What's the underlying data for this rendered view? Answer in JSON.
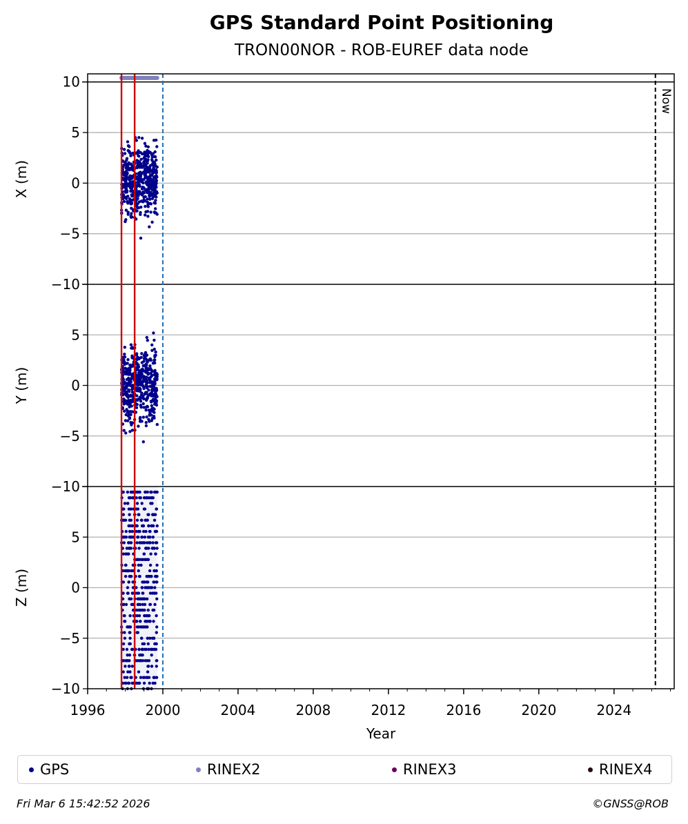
{
  "header": {
    "title": "GPS Standard Point Positioning",
    "subtitle": "TRON00NOR - ROB-EUREF data node"
  },
  "chart_data": {
    "type": "scatter",
    "xlabel": "Year",
    "xlim": [
      1996,
      2027.2
    ],
    "x_ticks": [
      "1996",
      "2000",
      "2004",
      "2008",
      "2012",
      "2016",
      "2020",
      "2024"
    ],
    "panels": [
      {
        "name": "x",
        "ylabel": "X (m)",
        "ylim": [
          -10,
          10.8
        ],
        "y_ticks": [
          "10",
          "5",
          "0",
          "−5",
          "−10"
        ]
      },
      {
        "name": "y",
        "ylabel": "Y (m)",
        "ylim": [
          -10,
          10
        ],
        "y_ticks": [
          "5",
          "0",
          "−5",
          "−10"
        ]
      },
      {
        "name": "z",
        "ylabel": "Z (m)",
        "ylim": [
          -10,
          10
        ],
        "y_ticks": [
          "5",
          "0",
          "−5",
          "−10"
        ]
      }
    ],
    "gps_data_span": [
      1997.8,
      1999.7
    ],
    "rinex2_span": [
      1997.8,
      1999.7
    ],
    "rinex2_level": 10.4,
    "event_lines_red": [
      1997.8,
      1998.5
    ],
    "blue_dashed_line": 2000.0,
    "now_line": 2026.2,
    "now_label": "Now",
    "legend": [
      {
        "name": "GPS",
        "color": "#00008b"
      },
      {
        "name": "RINEX2",
        "color": "#8080c0"
      },
      {
        "name": "RINEX3",
        "color": "#6a0060"
      },
      {
        "name": "RINEX4",
        "color": "#2a0a1a"
      }
    ],
    "colors": {
      "gps": "#00008b",
      "rinex2": "#8080c0",
      "event": "#cc0000",
      "dashed_blue": "#1f6fb4",
      "grid": "#b0b0b0"
    }
  },
  "footer": {
    "timestamp": "Fri Mar  6 15:42:52 2026",
    "copyright": "©GNSS@ROB"
  }
}
